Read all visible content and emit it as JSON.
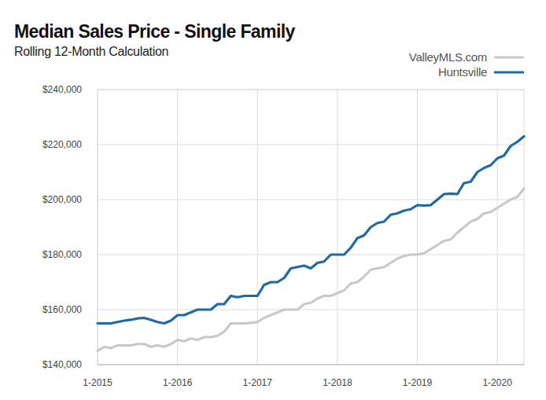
{
  "chart_data": {
    "type": "line",
    "title": "Median Sales Price - Single Family",
    "subtitle": "Rolling 12-Month Calculation",
    "categories": [
      "1-2015",
      null,
      null,
      null,
      null,
      null,
      null,
      null,
      null,
      null,
      null,
      null,
      "1-2016",
      null,
      null,
      null,
      null,
      null,
      null,
      null,
      null,
      null,
      null,
      null,
      "1-2017",
      null,
      null,
      null,
      null,
      null,
      null,
      null,
      null,
      null,
      null,
      null,
      "1-2018",
      null,
      null,
      null,
      null,
      null,
      null,
      null,
      null,
      null,
      null,
      null,
      "1-2019",
      null,
      null,
      null,
      null,
      null,
      null,
      null,
      null,
      null,
      null,
      null,
      "1-2020",
      null,
      null,
      null,
      null
    ],
    "series": [
      {
        "name": "ValleyMLS.com",
        "color": "#c8c8c8",
        "values": [
          145000,
          146500,
          146000,
          147000,
          147000,
          147000,
          147500,
          147500,
          146500,
          147000,
          146500,
          147500,
          149000,
          148500,
          149500,
          149000,
          150000,
          150000,
          150500,
          152000,
          155000,
          155000,
          155000,
          155200,
          155500,
          157000,
          158000,
          159000,
          160000,
          160000,
          160000,
          162000,
          162500,
          164000,
          165000,
          165000,
          166000,
          167000,
          169500,
          170000,
          172000,
          174500,
          175000,
          175500,
          177000,
          178500,
          179500,
          180000,
          180000,
          180500,
          182000,
          183500,
          185000,
          185500,
          188000,
          190000,
          192000,
          193000,
          195000,
          195500,
          197000,
          198500,
          200000,
          201000,
          204000
        ]
      },
      {
        "name": "Huntsville",
        "color": "#1f6aa5",
        "values": [
          155000,
          155000,
          155000,
          155500,
          156000,
          156300,
          156800,
          157000,
          156300,
          155500,
          155000,
          156000,
          158000,
          158000,
          159000,
          160000,
          160000,
          160000,
          162000,
          162000,
          165000,
          164500,
          165000,
          165000,
          165000,
          169000,
          170000,
          170000,
          171500,
          175000,
          175500,
          176000,
          175000,
          177000,
          177500,
          180000,
          180000,
          180000,
          182500,
          186000,
          187000,
          190000,
          191500,
          192000,
          194500,
          195000,
          196000,
          196500,
          198000,
          197800,
          198000,
          200000,
          202000,
          202200,
          202000,
          206000,
          206500,
          210000,
          211500,
          212500,
          215000,
          216000,
          219500,
          221000,
          223000
        ]
      }
    ],
    "ylim": [
      140000,
      240000
    ],
    "yticks": [
      {
        "value": 140000,
        "label": "$140,000"
      },
      {
        "value": 160000,
        "label": "$160,000"
      },
      {
        "value": 180000,
        "label": "$180,000"
      },
      {
        "value": 200000,
        "label": "$200,000"
      },
      {
        "value": 220000,
        "label": "$220,000"
      },
      {
        "value": 240000,
        "label": "$240,000"
      }
    ],
    "grid": true,
    "legend": "top-right"
  }
}
